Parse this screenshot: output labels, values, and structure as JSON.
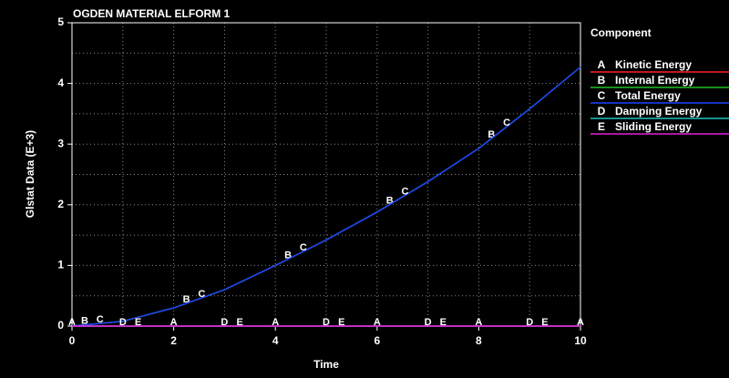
{
  "chart_data": {
    "type": "line",
    "title": "OGDEN MATERIAL ELFORM 1",
    "x_label": "Time",
    "y_label": "Glstat Data (E+3)",
    "legend_title": "Component",
    "x": [
      0,
      1,
      2,
      3,
      4,
      5,
      6,
      7,
      8,
      9,
      10
    ],
    "series": [
      {
        "name": "Kinetic Energy",
        "label": "A",
        "color": "#ff2020",
        "values": [
          0,
          0,
          0,
          0,
          0,
          0,
          0,
          0,
          0,
          0,
          0
        ]
      },
      {
        "name": "Internal Energy",
        "label": "B",
        "color": "#20c020",
        "values": [
          0,
          0.08,
          0.3,
          0.6,
          1.0,
          1.42,
          1.88,
          2.38,
          2.93,
          3.58,
          4.27
        ]
      },
      {
        "name": "Total Energy",
        "label": "C",
        "color": "#2040ff",
        "values": [
          0,
          0.08,
          0.3,
          0.6,
          1.0,
          1.42,
          1.88,
          2.38,
          2.93,
          3.58,
          4.27
        ]
      },
      {
        "name": "Damping Energy",
        "label": "D",
        "color": "#20c0c0",
        "values": [
          0,
          0,
          0,
          0,
          0,
          0,
          0,
          0,
          0,
          0,
          0
        ]
      },
      {
        "name": "Sliding Energy",
        "label": "E",
        "color": "#e020e0",
        "values": [
          0,
          0,
          0,
          0,
          0,
          0,
          0,
          0,
          0,
          0,
          0
        ]
      }
    ],
    "xlim": [
      0,
      10
    ],
    "xticks": [
      0,
      2,
      4,
      6,
      8,
      10
    ],
    "x_minor_ticks": [
      1,
      3,
      5,
      7,
      9
    ],
    "ylim": [
      0,
      5
    ],
    "yticks": [
      0,
      1,
      2,
      3,
      4,
      5
    ],
    "y_minor_ticks": [
      0.5,
      1.5,
      2.5,
      3.5,
      4.5
    ],
    "grid": true
  }
}
